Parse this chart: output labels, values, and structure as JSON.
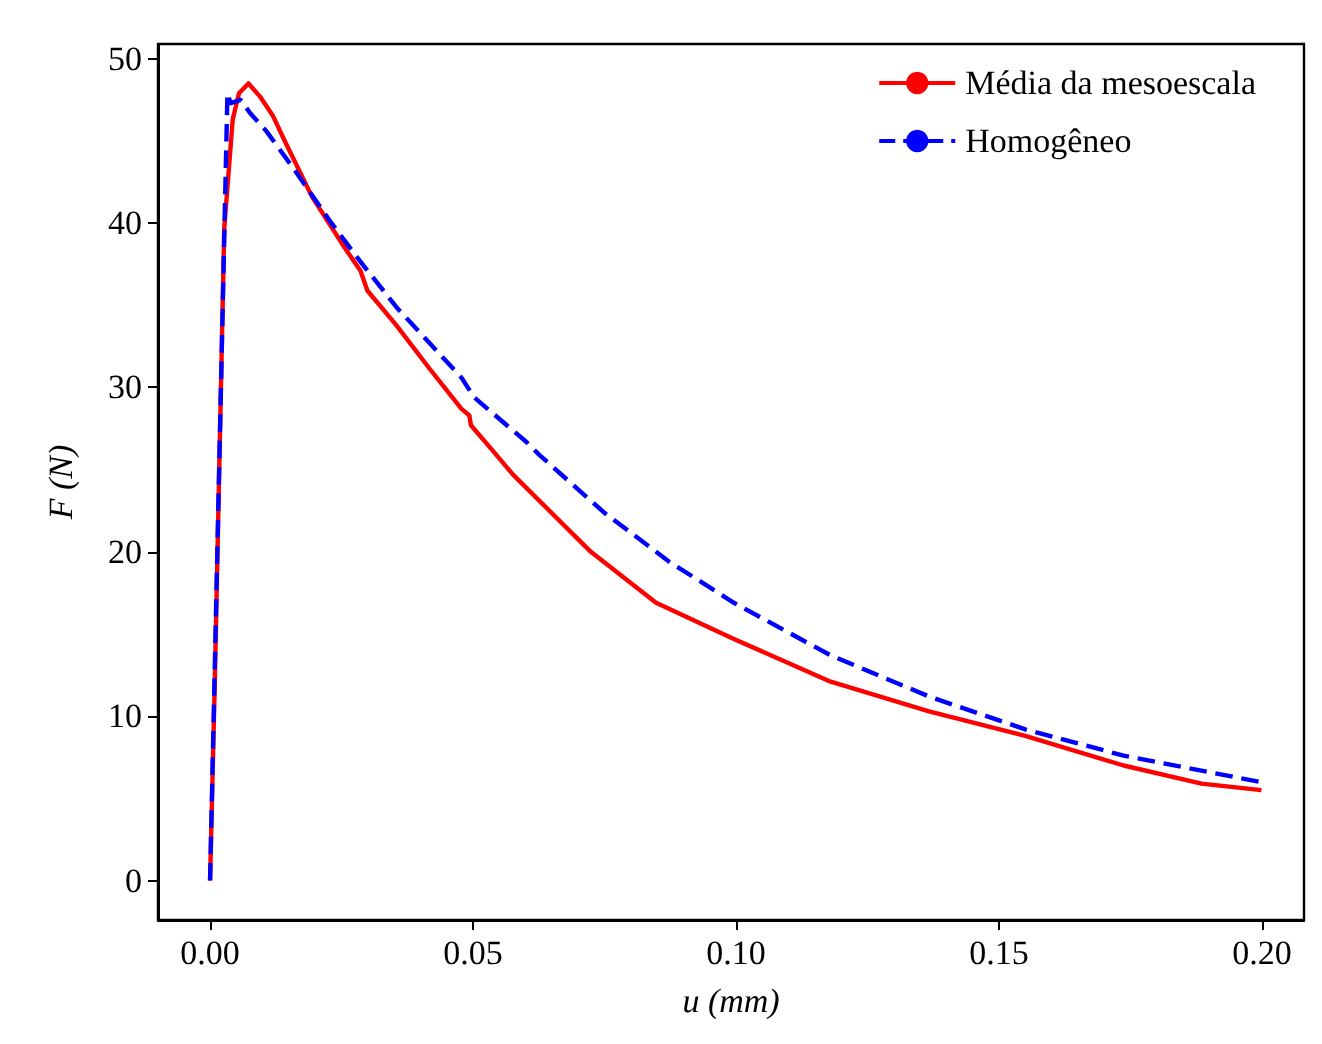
{
  "chart_data": {
    "type": "line",
    "xlabel": "u (mm)",
    "ylabel": "F (N)",
    "xlim": [
      -0.0099,
      0.208
    ],
    "ylim": [
      -2.4,
      50.9
    ],
    "xticks": [
      {
        "value": 0,
        "label": "0.00"
      },
      {
        "value": 0.05,
        "label": "0.05"
      },
      {
        "value": 0.1,
        "label": "0.10"
      },
      {
        "value": 0.15,
        "label": "0.15"
      },
      {
        "value": 0.2,
        "label": "0.20"
      }
    ],
    "yticks": [
      0,
      10,
      20,
      30,
      40,
      50
    ],
    "grid": false,
    "legend": "top right",
    "marker": "none",
    "series": [
      {
        "name": "Média da mesoescala",
        "color": "#ff0000",
        "line_style": "solid",
        "x": [
          0,
          0.0009,
          0.0027,
          0.0043,
          0.0055,
          0.0073,
          0.0095,
          0.012,
          0.0142,
          0.0194,
          0.0256,
          0.0286,
          0.0299,
          0.0354,
          0.0416,
          0.0478,
          0.0493,
          0.0496,
          0.0539,
          0.0576,
          0.0724,
          0.0848,
          0.0996,
          0.118,
          0.1367,
          0.155,
          0.1737,
          0.1885,
          0.1999
        ],
        "values": [
          0,
          12.1,
          39.7,
          46.3,
          47.9,
          48.5,
          47.7,
          46.5,
          45.0,
          41.6,
          38.5,
          37.1,
          35.9,
          33.8,
          31.2,
          28.7,
          28.3,
          27.7,
          26.1,
          24.7,
          20.0,
          16.9,
          14.7,
          12.1,
          10.3,
          8.8,
          7.0,
          5.9,
          5.5
        ]
      },
      {
        "name": "Homogêneo",
        "color": "#0000ff",
        "line_style": "dashed",
        "x": [
          0,
          0.0033,
          0.0039,
          0.0058,
          0.0076,
          0.0107,
          0.0157,
          0.0231,
          0.028,
          0.0354,
          0.0478,
          0.0502,
          0.0601,
          0.0626,
          0.0749,
          0.0873,
          0.0996,
          0.118,
          0.1367,
          0.155,
          0.1737,
          0.1996
        ],
        "values": [
          0,
          47.9,
          47.3,
          47.5,
          46.7,
          45.6,
          43.4,
          40.0,
          37.9,
          34.9,
          30.6,
          29.4,
          26.7,
          25.9,
          22.4,
          19.4,
          16.9,
          13.7,
          11.2,
          9.2,
          7.6,
          6.0
        ]
      }
    ]
  }
}
